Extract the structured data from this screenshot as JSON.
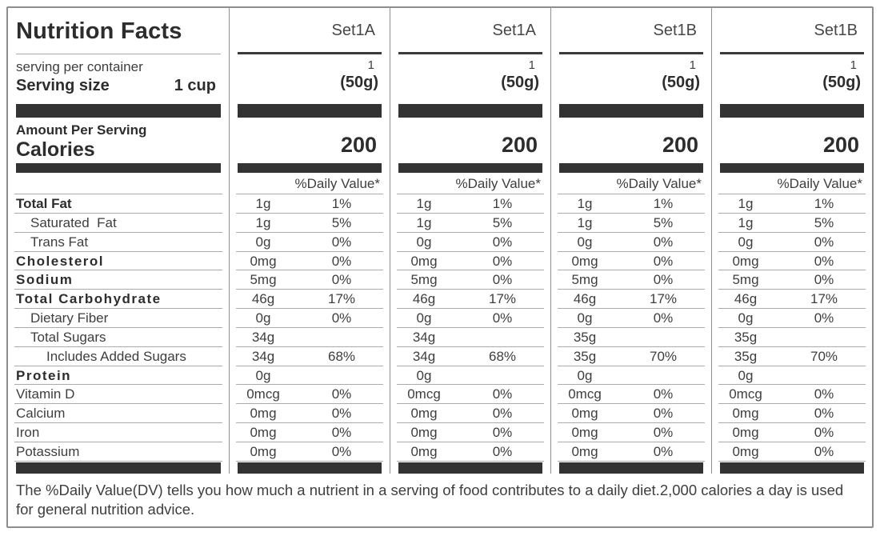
{
  "label": {
    "title": "Nutrition Facts",
    "serving_per_container": "serving per container",
    "serving_size_label": "Serving size",
    "serving_size_value": "1 cup",
    "amount_per_serving": "Amount Per Serving",
    "calories_label": "Calories",
    "daily_value_header": "%Daily Value*"
  },
  "nutrient_rows": [
    {
      "label": "Total Fat",
      "bold": true,
      "spaced": false,
      "indent": 0
    },
    {
      "label": "Saturated  Fat",
      "bold": false,
      "spaced": false,
      "indent": 1
    },
    {
      "label": "Trans Fat",
      "bold": false,
      "spaced": false,
      "indent": 1
    },
    {
      "label": "Cholesterol",
      "bold": true,
      "spaced": true,
      "indent": 0
    },
    {
      "label": "Sodium",
      "bold": true,
      "spaced": true,
      "indent": 0
    },
    {
      "label": "Total Carbohydrate",
      "bold": true,
      "spaced": true,
      "indent": 0
    },
    {
      "label": "Dietary Fiber",
      "bold": false,
      "spaced": false,
      "indent": 1
    },
    {
      "label": "Total Sugars",
      "bold": false,
      "spaced": false,
      "indent": 1
    },
    {
      "label": "Includes Added Sugars",
      "bold": false,
      "spaced": false,
      "indent": 2
    },
    {
      "label": "Protein",
      "bold": true,
      "spaced": true,
      "indent": 0
    },
    {
      "label": "Vitamin D",
      "bold": false,
      "spaced": false,
      "indent": 0
    },
    {
      "label": "Calcium",
      "bold": false,
      "spaced": false,
      "indent": 0
    },
    {
      "label": "Iron",
      "bold": false,
      "spaced": false,
      "indent": 0
    },
    {
      "label": "Potassium",
      "bold": false,
      "spaced": false,
      "indent": 0
    }
  ],
  "columns": [
    {
      "set_name": "Set1A",
      "servings_per_container": "1",
      "serving_size": "(50g)",
      "calories": "200",
      "nutrients": [
        {
          "amount": "1g",
          "dv": "1%"
        },
        {
          "amount": "1g",
          "dv": "5%"
        },
        {
          "amount": "0g",
          "dv": "0%"
        },
        {
          "amount": "0mg",
          "dv": "0%"
        },
        {
          "amount": "5mg",
          "dv": "0%"
        },
        {
          "amount": "46g",
          "dv": "17%"
        },
        {
          "amount": "0g",
          "dv": "0%"
        },
        {
          "amount": "34g",
          "dv": ""
        },
        {
          "amount": "34g",
          "dv": "68%"
        },
        {
          "amount": "0g",
          "dv": ""
        },
        {
          "amount": "0mcg",
          "dv": "0%"
        },
        {
          "amount": "0mg",
          "dv": "0%"
        },
        {
          "amount": "0mg",
          "dv": "0%"
        },
        {
          "amount": "0mg",
          "dv": "0%"
        }
      ]
    },
    {
      "set_name": "Set1A",
      "servings_per_container": "1",
      "serving_size": "(50g)",
      "calories": "200",
      "nutrients": [
        {
          "amount": "1g",
          "dv": "1%"
        },
        {
          "amount": "1g",
          "dv": "5%"
        },
        {
          "amount": "0g",
          "dv": "0%"
        },
        {
          "amount": "0mg",
          "dv": "0%"
        },
        {
          "amount": "5mg",
          "dv": "0%"
        },
        {
          "amount": "46g",
          "dv": "17%"
        },
        {
          "amount": "0g",
          "dv": "0%"
        },
        {
          "amount": "34g",
          "dv": ""
        },
        {
          "amount": "34g",
          "dv": "68%"
        },
        {
          "amount": "0g",
          "dv": ""
        },
        {
          "amount": "0mcg",
          "dv": "0%"
        },
        {
          "amount": "0mg",
          "dv": "0%"
        },
        {
          "amount": "0mg",
          "dv": "0%"
        },
        {
          "amount": "0mg",
          "dv": "0%"
        }
      ]
    },
    {
      "set_name": "Set1B",
      "servings_per_container": "1",
      "serving_size": "(50g)",
      "calories": "200",
      "nutrients": [
        {
          "amount": "1g",
          "dv": "1%"
        },
        {
          "amount": "1g",
          "dv": "5%"
        },
        {
          "amount": "0g",
          "dv": "0%"
        },
        {
          "amount": "0mg",
          "dv": "0%"
        },
        {
          "amount": "5mg",
          "dv": "0%"
        },
        {
          "amount": "46g",
          "dv": "17%"
        },
        {
          "amount": "0g",
          "dv": "0%"
        },
        {
          "amount": "35g",
          "dv": ""
        },
        {
          "amount": "35g",
          "dv": "70%"
        },
        {
          "amount": "0g",
          "dv": ""
        },
        {
          "amount": "0mcg",
          "dv": "0%"
        },
        {
          "amount": "0mg",
          "dv": "0%"
        },
        {
          "amount": "0mg",
          "dv": "0%"
        },
        {
          "amount": "0mg",
          "dv": "0%"
        }
      ]
    },
    {
      "set_name": "Set1B",
      "servings_per_container": "1",
      "serving_size": "(50g)",
      "calories": "200",
      "nutrients": [
        {
          "amount": "1g",
          "dv": "1%"
        },
        {
          "amount": "1g",
          "dv": "5%"
        },
        {
          "amount": "0g",
          "dv": "0%"
        },
        {
          "amount": "0mg",
          "dv": "0%"
        },
        {
          "amount": "5mg",
          "dv": "0%"
        },
        {
          "amount": "46g",
          "dv": "17%"
        },
        {
          "amount": "0g",
          "dv": "0%"
        },
        {
          "amount": "35g",
          "dv": ""
        },
        {
          "amount": "35g",
          "dv": "70%"
        },
        {
          "amount": "0g",
          "dv": ""
        },
        {
          "amount": "0mcg",
          "dv": "0%"
        },
        {
          "amount": "0mg",
          "dv": "0%"
        },
        {
          "amount": "0mg",
          "dv": "0%"
        },
        {
          "amount": "0mg",
          "dv": "0%"
        }
      ]
    }
  ],
  "footer": {
    "text": "The %Daily Value(DV) tells you how much a nutrient in a serving of food contributes to a daily diet.2,000 calories a day is used for general nutrition advice."
  },
  "colors": {
    "bar": "#333333",
    "text": "#3e3e3e",
    "thin_rule": "#ababab",
    "column_divider": "#8f8f8f",
    "outer_border": "#8d8d8d"
  }
}
